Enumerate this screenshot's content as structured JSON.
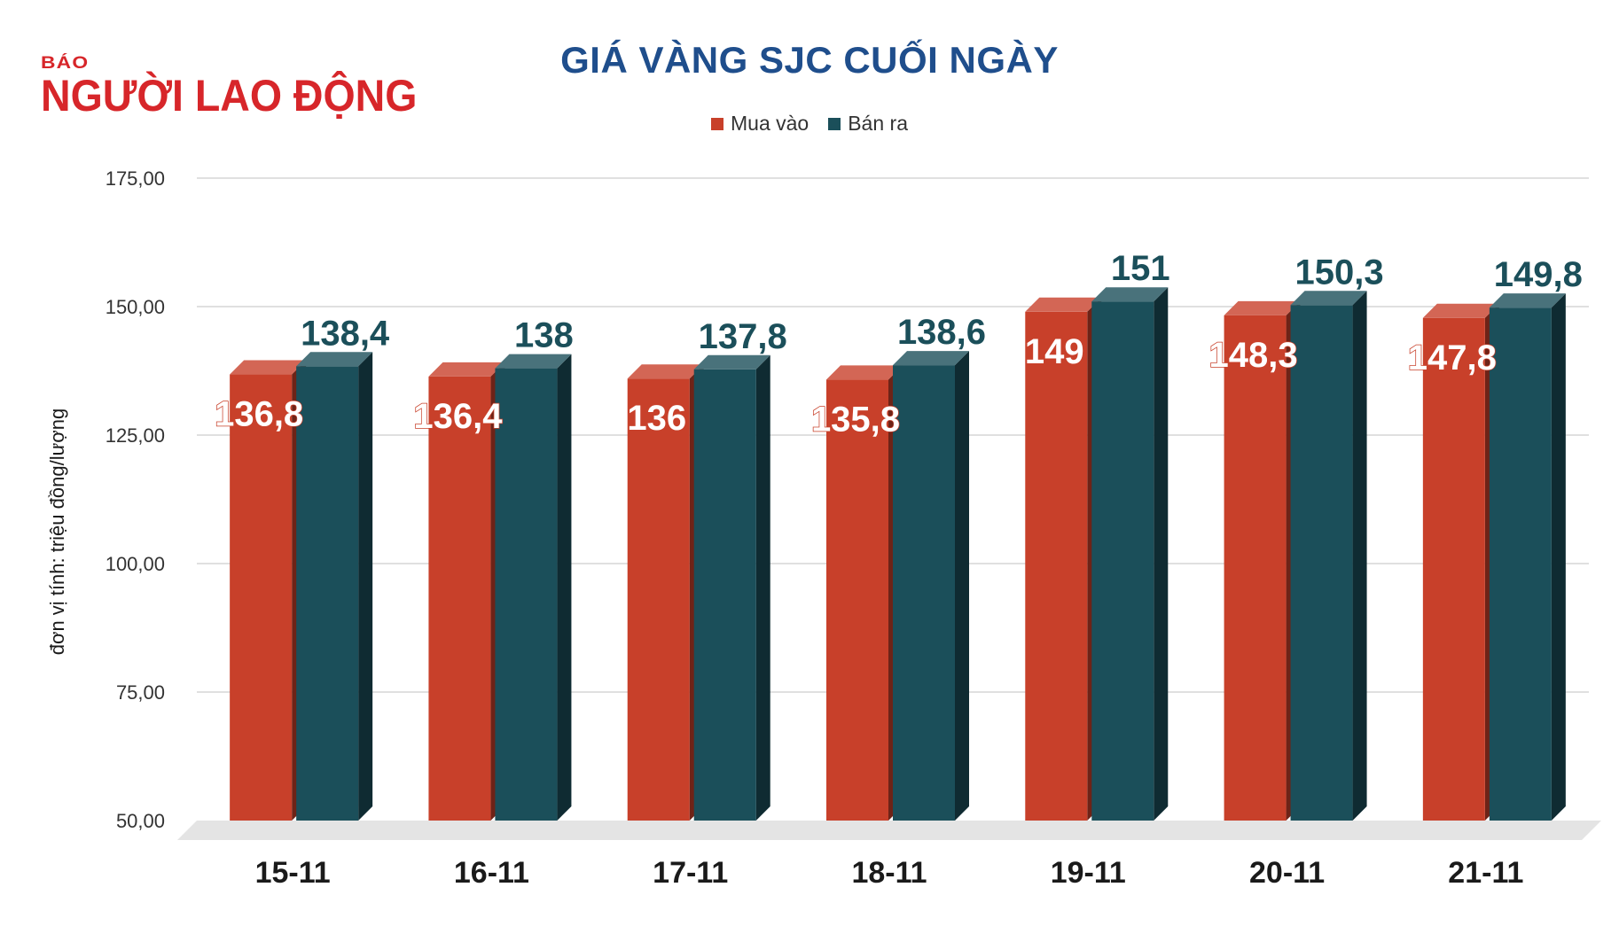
{
  "logo": {
    "small": "BÁO",
    "main": "NGƯỜI LAO ĐỘNG"
  },
  "colors": {
    "buy": "#c8402a",
    "sell": "#1b4f5a",
    "title": "#1f4e8c",
    "brand": "#d7262a"
  },
  "chart_data": {
    "type": "bar",
    "title": "GIÁ VÀNG SJC CUỐI NGÀY",
    "ylabel": "đơn vị tính: triệu đồng/lượng",
    "xlabel": "",
    "categories": [
      "15-11",
      "16-11",
      "17-11",
      "18-11",
      "19-11",
      "20-11",
      "21-11"
    ],
    "series": [
      {
        "name": "Mua vào",
        "values": [
          136.8,
          136.4,
          136,
          135.8,
          149,
          148.3,
          147.8
        ],
        "labels": [
          "136,8",
          "136,4",
          "136",
          "135,8",
          "149",
          "148,3",
          "147,8"
        ]
      },
      {
        "name": "Bán ra",
        "values": [
          138.4,
          138,
          137.8,
          138.6,
          151,
          150.3,
          149.8
        ],
        "labels": [
          "138,4",
          "138",
          "137,8",
          "138,6",
          "151",
          "150,3",
          "149,8"
        ]
      }
    ],
    "yticks": [
      "50,00",
      "75,00",
      "100,00",
      "125,00",
      "150,00",
      "175,00"
    ],
    "ylim": [
      50,
      175
    ],
    "grid": true,
    "legend": "top-center"
  }
}
